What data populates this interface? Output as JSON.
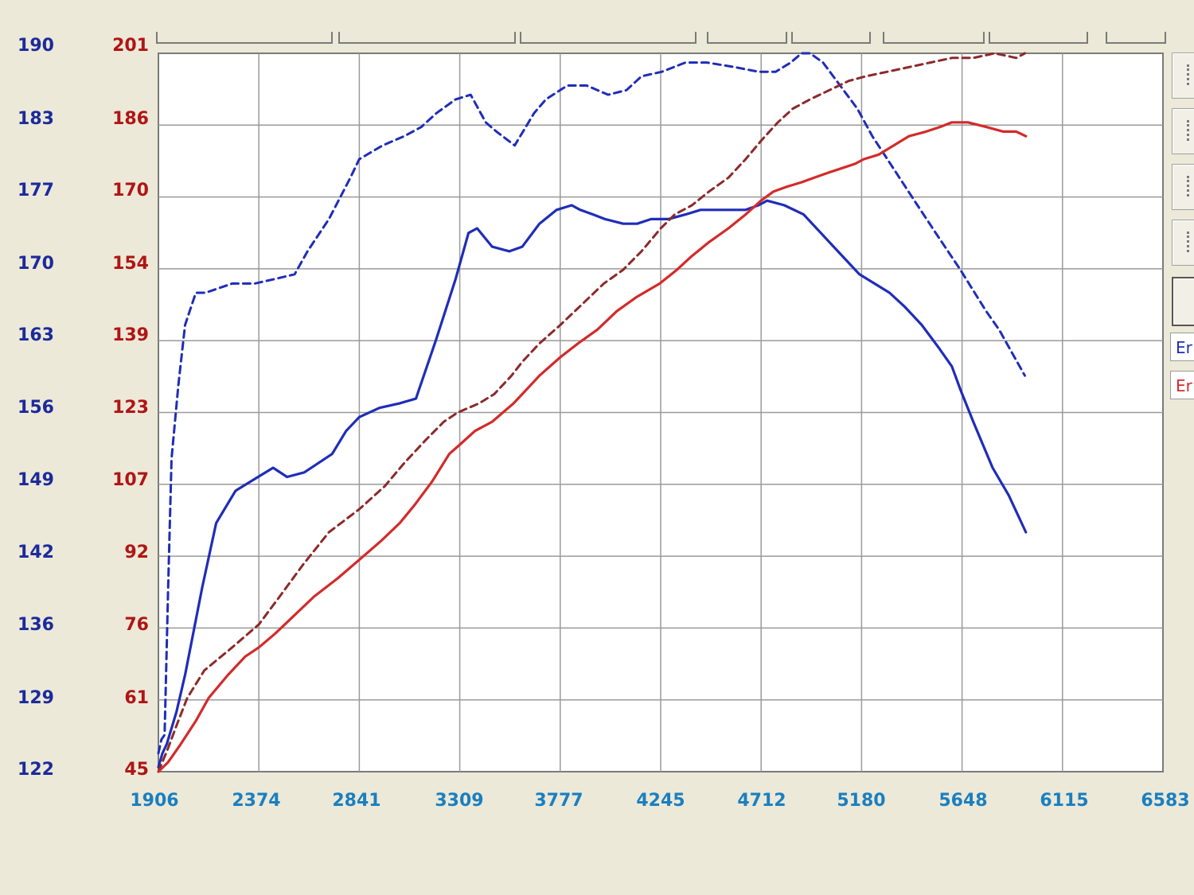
{
  "chart_data": {
    "type": "line",
    "title": "",
    "xlabel": "",
    "ylabel": "",
    "x_ticks": [
      "1906",
      "2374",
      "2841",
      "3309",
      "3777",
      "4245",
      "4712",
      "5180",
      "5648",
      "6115",
      "6583"
    ],
    "xlim": [
      1906,
      6583
    ],
    "y_left_blue_ticks": [
      "190",
      "183",
      "177",
      "170",
      "163",
      "156",
      "149",
      "142",
      "136",
      "129",
      "122"
    ],
    "y_left_red_ticks": [
      "201",
      "186",
      "170",
      "154",
      "139",
      "123",
      "107",
      "92",
      "76",
      "61",
      "45"
    ],
    "ylim_red": [
      45,
      201
    ],
    "grid": true,
    "legend_placement": "right",
    "colors": {
      "blue": "#1f2db8",
      "red": "#d42a2a",
      "dark_red": "#8c2a2a",
      "dark_blue": "#1e2a78"
    },
    "series": [
      {
        "color": "blue",
        "style": "dashed",
        "points": [
          [
            1906,
            49
          ],
          [
            1920,
            52
          ],
          [
            1935,
            53
          ],
          [
            1951,
            84
          ],
          [
            1967,
            113
          ],
          [
            1999,
            129
          ],
          [
            2030,
            142
          ],
          [
            2080,
            149
          ],
          [
            2125,
            149
          ],
          [
            2250,
            151
          ],
          [
            2354,
            151
          ],
          [
            2450,
            152
          ],
          [
            2540,
            153
          ],
          [
            2600,
            158
          ],
          [
            2700,
            165
          ],
          [
            2800,
            174
          ],
          [
            2841,
            178
          ],
          [
            2950,
            181
          ],
          [
            3050,
            183
          ],
          [
            3130,
            185
          ],
          [
            3200,
            188
          ],
          [
            3290,
            191
          ],
          [
            3360,
            192
          ],
          [
            3430,
            186
          ],
          [
            3480,
            184
          ],
          [
            3565,
            181
          ],
          [
            3655,
            188
          ],
          [
            3710,
            191
          ],
          [
            3810,
            194
          ],
          [
            3900,
            194
          ],
          [
            4000,
            192
          ],
          [
            4085,
            193
          ],
          [
            4155,
            196
          ],
          [
            4250,
            197
          ],
          [
            4360,
            199
          ],
          [
            4460,
            199
          ],
          [
            4590,
            198
          ],
          [
            4700,
            197
          ],
          [
            4780,
            197
          ],
          [
            4850,
            199
          ],
          [
            4900,
            201
          ],
          [
            4940,
            201
          ],
          [
            5000,
            199
          ],
          [
            5080,
            194
          ],
          [
            5160,
            189
          ],
          [
            5230,
            183
          ],
          [
            5300,
            178
          ],
          [
            5370,
            173
          ],
          [
            5440,
            168
          ],
          [
            5525,
            162
          ],
          [
            5640,
            154
          ],
          [
            5760,
            145
          ],
          [
            5820,
            141
          ],
          [
            5880,
            136
          ],
          [
            5940,
            131
          ]
        ]
      },
      {
        "color": "blue",
        "style": "solid",
        "points": [
          [
            1906,
            46
          ],
          [
            1925,
            49
          ],
          [
            1945,
            51
          ],
          [
            1990,
            58
          ],
          [
            2030,
            66
          ],
          [
            2110,
            85
          ],
          [
            2175,
            99
          ],
          [
            2265,
            106
          ],
          [
            2370,
            109
          ],
          [
            2440,
            111
          ],
          [
            2505,
            109
          ],
          [
            2585,
            110
          ],
          [
            2650,
            112
          ],
          [
            2715,
            114
          ],
          [
            2780,
            119
          ],
          [
            2841,
            122
          ],
          [
            2935,
            124
          ],
          [
            3030,
            125
          ],
          [
            3105,
            126
          ],
          [
            3200,
            139
          ],
          [
            3290,
            152
          ],
          [
            3350,
            162
          ],
          [
            3390,
            163
          ],
          [
            3460,
            159
          ],
          [
            3540,
            158
          ],
          [
            3600,
            159
          ],
          [
            3680,
            164
          ],
          [
            3760,
            167
          ],
          [
            3830,
            168
          ],
          [
            3870,
            167
          ],
          [
            3930,
            166
          ],
          [
            3985,
            165
          ],
          [
            4070,
            164
          ],
          [
            4135,
            164
          ],
          [
            4200,
            165
          ],
          [
            4280,
            165
          ],
          [
            4360,
            166
          ],
          [
            4430,
            167
          ],
          [
            4520,
            167
          ],
          [
            4590,
            167
          ],
          [
            4640,
            167
          ],
          [
            4700,
            168
          ],
          [
            4740,
            169
          ],
          [
            4820,
            168
          ],
          [
            4910,
            166
          ],
          [
            4990,
            162
          ],
          [
            5050,
            159
          ],
          [
            5110,
            156
          ],
          [
            5170,
            153
          ],
          [
            5240,
            151
          ],
          [
            5310,
            149
          ],
          [
            5380,
            146
          ],
          [
            5460,
            142
          ],
          [
            5540,
            137
          ],
          [
            5600,
            133
          ],
          [
            5640,
            128
          ],
          [
            5700,
            121
          ],
          [
            5790,
            111
          ],
          [
            5865,
            105
          ],
          [
            5945,
            97
          ]
        ]
      },
      {
        "color": "dark_red",
        "style": "dashed",
        "points": [
          [
            1906,
            45
          ],
          [
            1950,
            50
          ],
          [
            1990,
            55
          ],
          [
            2040,
            61
          ],
          [
            2120,
            67
          ],
          [
            2250,
            72
          ],
          [
            2374,
            77
          ],
          [
            2470,
            83
          ],
          [
            2580,
            90
          ],
          [
            2700,
            97
          ],
          [
            2841,
            102
          ],
          [
            2960,
            107
          ],
          [
            3050,
            112
          ],
          [
            3150,
            117
          ],
          [
            3235,
            121
          ],
          [
            3300,
            123
          ],
          [
            3400,
            125
          ],
          [
            3470,
            127
          ],
          [
            3550,
            131
          ],
          [
            3600,
            134
          ],
          [
            3680,
            138
          ],
          [
            3777,
            142
          ],
          [
            3890,
            147
          ],
          [
            3980,
            151
          ],
          [
            4070,
            154
          ],
          [
            4155,
            158
          ],
          [
            4245,
            163
          ],
          [
            4310,
            166
          ],
          [
            4390,
            168
          ],
          [
            4470,
            171
          ],
          [
            4560,
            174
          ],
          [
            4640,
            178
          ],
          [
            4712,
            182
          ],
          [
            4790,
            186
          ],
          [
            4860,
            189
          ],
          [
            4940,
            191
          ],
          [
            5030,
            193
          ],
          [
            5120,
            195
          ],
          [
            5200,
            196
          ],
          [
            5300,
            197
          ],
          [
            5400,
            198
          ],
          [
            5500,
            199
          ],
          [
            5600,
            200
          ],
          [
            5700,
            200
          ],
          [
            5800,
            201
          ],
          [
            5900,
            200
          ],
          [
            5940,
            201
          ]
        ]
      },
      {
        "color": "red",
        "style": "solid",
        "points": [
          [
            1906,
            45
          ],
          [
            1950,
            47
          ],
          [
            2010,
            51
          ],
          [
            2080,
            56
          ],
          [
            2140,
            61
          ],
          [
            2230,
            66
          ],
          [
            2310,
            70
          ],
          [
            2374,
            72
          ],
          [
            2450,
            75
          ],
          [
            2540,
            79
          ],
          [
            2630,
            83
          ],
          [
            2741,
            87
          ],
          [
            2841,
            91
          ],
          [
            2940,
            95
          ],
          [
            3030,
            99
          ],
          [
            3100,
            103
          ],
          [
            3180,
            108
          ],
          [
            3260,
            114
          ],
          [
            3309,
            116
          ],
          [
            3380,
            119
          ],
          [
            3460,
            121
          ],
          [
            3560,
            125
          ],
          [
            3640,
            129
          ],
          [
            3680,
            131
          ],
          [
            3777,
            135
          ],
          [
            3860,
            138
          ],
          [
            3950,
            141
          ],
          [
            4040,
            145
          ],
          [
            4130,
            148
          ],
          [
            4240,
            151
          ],
          [
            4320,
            154
          ],
          [
            4390,
            157
          ],
          [
            4470,
            160
          ],
          [
            4560,
            163
          ],
          [
            4640,
            166
          ],
          [
            4712,
            169
          ],
          [
            4770,
            171
          ],
          [
            4830,
            172
          ],
          [
            4900,
            173
          ],
          [
            4960,
            174
          ],
          [
            5020,
            175
          ],
          [
            5085,
            176
          ],
          [
            5150,
            177
          ],
          [
            5190,
            178
          ],
          [
            5260,
            179
          ],
          [
            5330,
            181
          ],
          [
            5400,
            183
          ],
          [
            5480,
            184
          ],
          [
            5545,
            185
          ],
          [
            5600,
            186
          ],
          [
            5675,
            186
          ],
          [
            5760,
            185
          ],
          [
            5840,
            184
          ],
          [
            5900,
            184
          ],
          [
            5945,
            183
          ]
        ]
      }
    ]
  },
  "legend": {
    "items": [
      {
        "label": "Er",
        "color": "#1f2db8"
      },
      {
        "label": "Er",
        "color": "#d42a2a"
      }
    ]
  },
  "icons": [
    "grip-icon"
  ]
}
